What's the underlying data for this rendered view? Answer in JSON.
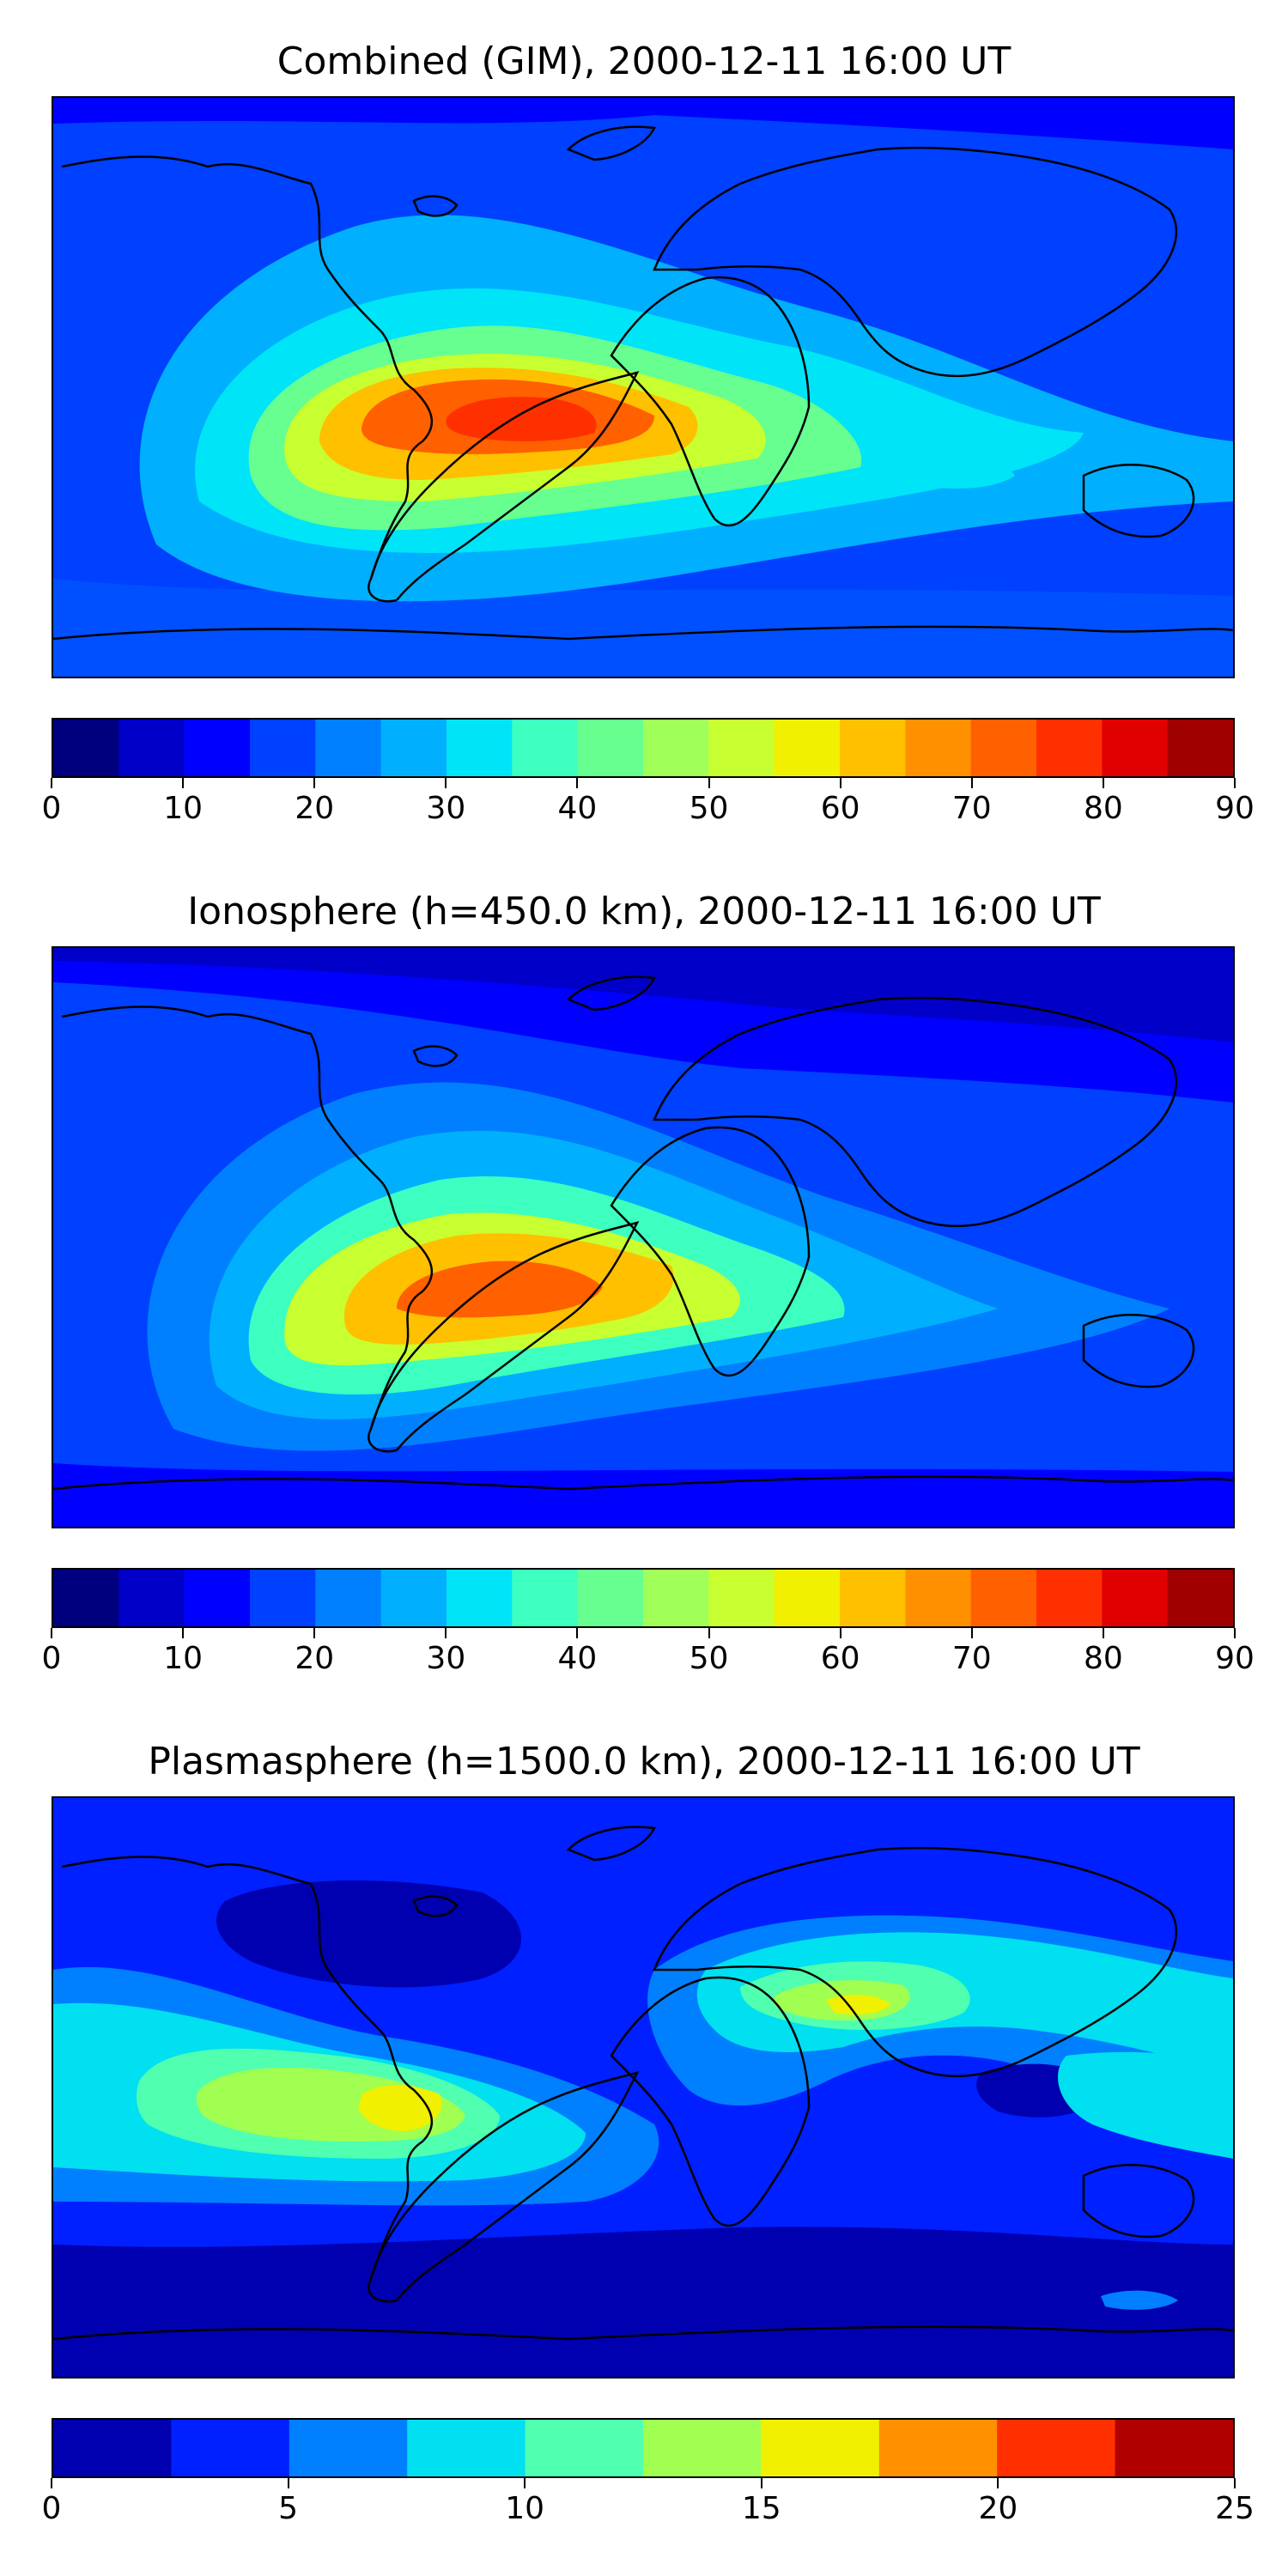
{
  "panels": [
    {
      "title": "Combined (GIM), 2000-12-11 16:00 UT",
      "colorbar": {
        "colors": [
          "#00007f",
          "#0000c8",
          "#0000ff",
          "#0040ff",
          "#0080ff",
          "#00b0ff",
          "#00e4f8",
          "#3cffc0",
          "#66ff90",
          "#a0ff58",
          "#c8ff30",
          "#f0f000",
          "#ffc000",
          "#ff9000",
          "#ff6000",
          "#ff3000",
          "#e00000",
          "#a00000"
        ],
        "ticks": [
          "0",
          "10",
          "20",
          "30",
          "40",
          "50",
          "60",
          "70",
          "80",
          "90"
        ]
      }
    },
    {
      "title": "Ionosphere  (h=450.0 km), 2000-12-11 16:00 UT",
      "colorbar": {
        "colors": [
          "#00007f",
          "#0000c8",
          "#0000ff",
          "#0040ff",
          "#0080ff",
          "#00b0ff",
          "#00e4f8",
          "#3cffc0",
          "#66ff90",
          "#a0ff58",
          "#c8ff30",
          "#f0f000",
          "#ffc000",
          "#ff9000",
          "#ff6000",
          "#ff3000",
          "#e00000",
          "#a00000"
        ],
        "ticks": [
          "0",
          "10",
          "20",
          "30",
          "40",
          "50",
          "60",
          "70",
          "80",
          "90"
        ]
      }
    },
    {
      "title": "Plasmasphere (h=1500.0 km), 2000-12-11 16:00 UT",
      "colorbar": {
        "colors": [
          "#0000b0",
          "#0020ff",
          "#0080ff",
          "#00e0f0",
          "#50ffb0",
          "#a0ff50",
          "#f0f000",
          "#ff9000",
          "#ff3000",
          "#b00000"
        ],
        "ticks": [
          "0",
          "5",
          "10",
          "15",
          "20",
          "25"
        ]
      }
    }
  ]
}
